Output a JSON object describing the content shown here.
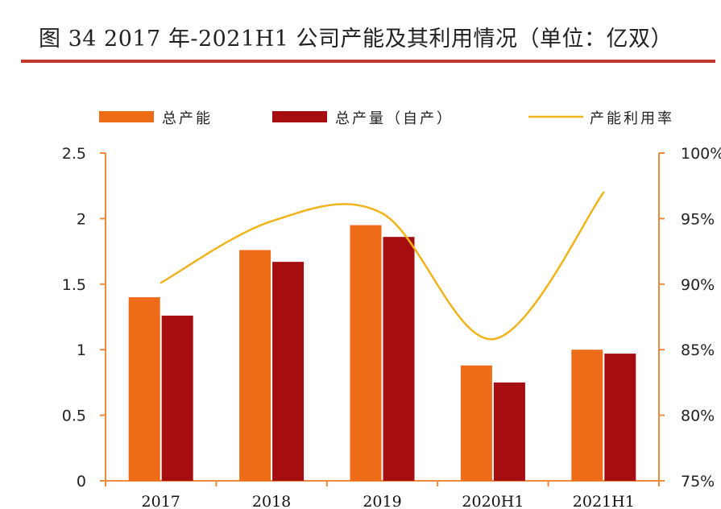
{
  "title": "图  34 2017 年-2021H1 公司产能及其利用情况（单位：亿双）",
  "colors": {
    "capacity": "#ee6b17",
    "output": "#a50d10",
    "utilization": "#f0b41a",
    "axis": "#ee8a3c",
    "title_rule": "#c0392b"
  },
  "chart_data": {
    "type": "bar",
    "title": "图  34 2017 年-2021H1 公司产能及其利用情况（单位：亿双）",
    "categories": [
      "2017",
      "2018",
      "2019",
      "2020H1",
      "2021H1"
    ],
    "series": [
      {
        "name": "总产能",
        "type": "bar",
        "axis": "left",
        "values": [
          1.4,
          1.76,
          1.95,
          0.88,
          1.0
        ]
      },
      {
        "name": "总产量（自产）",
        "type": "bar",
        "axis": "left",
        "values": [
          1.26,
          1.67,
          1.86,
          0.75,
          0.97
        ]
      },
      {
        "name": "产能利用率",
        "type": "line",
        "axis": "right",
        "values": [
          90.1,
          94.8,
          95.4,
          85.8,
          97.0
        ]
      }
    ],
    "y_left": {
      "min": 0,
      "max": 2.5,
      "ticks": [
        "0",
        "0.5",
        "1",
        "1.5",
        "2",
        "2.5"
      ]
    },
    "y_right": {
      "min": 75,
      "max": 100,
      "ticks": [
        "75%",
        "80%",
        "85%",
        "90%",
        "95%",
        "100%"
      ]
    },
    "legend_position": "top",
    "grid": false
  }
}
